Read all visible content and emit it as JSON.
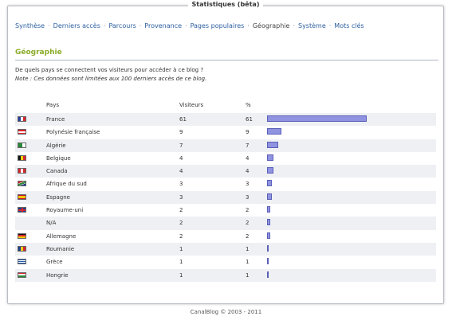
{
  "window": {
    "title": "Statistiques (bêta)"
  },
  "nav": {
    "items": [
      {
        "label": "Synthèse",
        "current": false
      },
      {
        "label": "Derniers accès",
        "current": false
      },
      {
        "label": "Parcours",
        "current": false
      },
      {
        "label": "Provenance",
        "current": false
      },
      {
        "label": "Pages populaires",
        "current": false
      },
      {
        "label": "Géographie",
        "current": true
      },
      {
        "label": "Système",
        "current": false
      },
      {
        "label": "Mots clés",
        "current": false
      }
    ],
    "separator": "·"
  },
  "section": {
    "heading": "Géographie",
    "description": "De quels pays se connectent vos visiteurs pour accéder à ce blog ?",
    "note": "Note : Ces données sont limitées aux 100 derniers accès de ce blog."
  },
  "table": {
    "headers": {
      "pays": "Pays",
      "visiteurs": "Visiteurs",
      "pct": "%"
    },
    "rows": [
      {
        "pays": "France",
        "visiteurs": "61",
        "pct": "61",
        "bar": 61,
        "flag": "flag-france-icon"
      },
      {
        "pays": "Polynésie française",
        "visiteurs": "9",
        "pct": "9",
        "bar": 9,
        "flag": "flag-french-polynesia-icon"
      },
      {
        "pays": "Algérie",
        "visiteurs": "7",
        "pct": "7",
        "bar": 7,
        "flag": "flag-algeria-icon"
      },
      {
        "pays": "Belgique",
        "visiteurs": "4",
        "pct": "4",
        "bar": 4,
        "flag": "flag-belgium-icon"
      },
      {
        "pays": "Canada",
        "visiteurs": "4",
        "pct": "4",
        "bar": 4,
        "flag": "flag-canada-icon"
      },
      {
        "pays": "Afrique du sud",
        "visiteurs": "3",
        "pct": "3",
        "bar": 3,
        "flag": "flag-south-africa-icon"
      },
      {
        "pays": "Espagne",
        "visiteurs": "3",
        "pct": "3",
        "bar": 3,
        "flag": "flag-spain-icon"
      },
      {
        "pays": "Royaume-uni",
        "visiteurs": "2",
        "pct": "2",
        "bar": 2,
        "flag": "flag-uk-icon"
      },
      {
        "pays": "N/A",
        "visiteurs": "2",
        "pct": "2",
        "bar": 2,
        "flag": ""
      },
      {
        "pays": "Allemagne",
        "visiteurs": "2",
        "pct": "2",
        "bar": 2,
        "flag": "flag-germany-icon"
      },
      {
        "pays": "Roumanie",
        "visiteurs": "1",
        "pct": "1",
        "bar": 1,
        "flag": "flag-romania-icon"
      },
      {
        "pays": "Grèce",
        "visiteurs": "1",
        "pct": "1",
        "bar": 1,
        "flag": "flag-greece-icon"
      },
      {
        "pays": "Hongrie",
        "visiteurs": "1",
        "pct": "1",
        "bar": 1,
        "flag": "flag-hungary-icon"
      }
    ]
  },
  "colors": {
    "bar_fill": "#8f93e0",
    "bar_border": "#5a5fb8",
    "heading": "#8aac2a",
    "link": "#2a5d9f"
  },
  "footer": {
    "text": "CanalBlog © 2003 - 2011"
  }
}
